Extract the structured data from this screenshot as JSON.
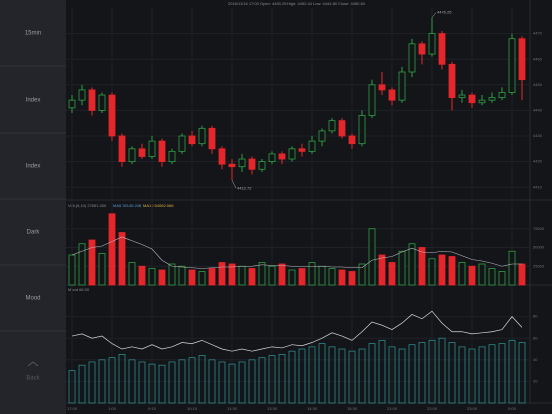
{
  "sidebar": {
    "items": [
      "15min",
      "Index",
      "Index",
      "Dark",
      "Mood"
    ],
    "back": "Back"
  },
  "header": {
    "time": "2016/11/16 17:00",
    "open": "Open: 4450.25",
    "high": "High: 4452.44",
    "low": "Low: 4444.80",
    "close": "Close: 4450.84"
  },
  "chart_data": {
    "type": "candlestick",
    "categories": [
      "17:00",
      null,
      null,
      null,
      "1:00",
      null,
      null,
      null,
      "9:15",
      null,
      null,
      null,
      "10:15",
      null,
      null,
      null,
      "11:30",
      null,
      null,
      null,
      "13:30",
      null,
      null,
      null,
      "14:30",
      null,
      null,
      null,
      "15:30",
      null,
      null,
      null,
      "21:00",
      null,
      null,
      null,
      "22:00",
      null,
      null,
      null,
      "23:00",
      null,
      null,
      null,
      "0:00",
      null
    ],
    "candles": [
      [
        4441,
        4446,
        4439,
        4444
      ],
      [
        4444,
        4450,
        4442,
        4448
      ],
      [
        4448,
        4449,
        4438,
        4440
      ],
      [
        4440,
        4447,
        4439,
        4446
      ],
      [
        4446,
        4447,
        4428,
        4430
      ],
      [
        4430,
        4431,
        4418,
        4420
      ],
      [
        4420,
        4426,
        4419,
        4425
      ],
      [
        4425,
        4427,
        4421,
        4422
      ],
      [
        4422,
        4430,
        4421,
        4428
      ],
      [
        4428,
        4429,
        4418,
        4420
      ],
      [
        4420,
        4425,
        4419,
        4424
      ],
      [
        4424,
        4431,
        4423,
        4430
      ],
      [
        4430,
        4432,
        4426,
        4427
      ],
      [
        4427,
        4434,
        4426,
        4433
      ],
      [
        4433,
        4434,
        4423,
        4425
      ],
      [
        4425,
        4426,
        4417,
        4419
      ],
      [
        4419,
        4421,
        4412.72,
        4418
      ],
      [
        4418,
        4423,
        4416,
        4421
      ],
      [
        4421,
        4422,
        4415,
        4417
      ],
      [
        4417,
        4421,
        4416,
        4420
      ],
      [
        4420,
        4424,
        4419,
        4423
      ],
      [
        4423,
        4424,
        4419,
        4421
      ],
      [
        4421,
        4426,
        4420,
        4425
      ],
      [
        4425,
        4427,
        4422,
        4424
      ],
      [
        4424,
        4430,
        4423,
        4428
      ],
      [
        4428,
        4433,
        4426,
        4432
      ],
      [
        4432,
        4437,
        4431,
        4436
      ],
      [
        4436,
        4437,
        4429,
        4430
      ],
      [
        4430,
        4431,
        4425,
        4427
      ],
      [
        4427,
        4440,
        4426,
        4438
      ],
      [
        4438,
        4452,
        4437,
        4450
      ],
      [
        4450,
        4455,
        4446,
        4448
      ],
      [
        4448,
        4449,
        4442,
        4444
      ],
      [
        4444,
        4457,
        4443,
        4455
      ],
      [
        4455,
        4468,
        4453,
        4466
      ],
      [
        4466,
        4467,
        4458,
        4462
      ],
      [
        4462,
        4476.25,
        4461,
        4470
      ],
      [
        4470,
        4471,
        4456,
        4458
      ],
      [
        4458,
        4459,
        4440,
        4445
      ],
      [
        4445,
        4448,
        4443,
        4446
      ],
      [
        4446,
        4447,
        4441,
        4443
      ],
      [
        4443,
        4446,
        4442,
        4444
      ],
      [
        4444,
        4447,
        4443,
        4445
      ],
      [
        4445,
        4449,
        4444,
        4447
      ],
      [
        4447,
        4470,
        4446,
        4468
      ],
      [
        4468,
        4469,
        4444,
        4452
      ]
    ],
    "low_mark": 16,
    "high_mark": 36,
    "ylim": [
      4405,
      4480
    ],
    "yticks": [
      4410,
      4420,
      4430,
      4440,
      4450,
      4460,
      4470
    ],
    "up_color": "#2ea043",
    "down_color": "#e5262b",
    "volume": {
      "title": "VolL(5,10) 27651.000",
      "ma5_label": "MA5 39145.248",
      "ma10_label": "MA10 54062.066",
      "values": [
        40000,
        55000,
        60000,
        42000,
        95000,
        70000,
        30000,
        25000,
        22000,
        20000,
        28000,
        25000,
        20000,
        18000,
        22000,
        30000,
        28000,
        25000,
        22000,
        30000,
        25000,
        28000,
        20000,
        22000,
        30000,
        25000,
        22000,
        20000,
        18000,
        28000,
        75000,
        40000,
        30000,
        45000,
        55000,
        50000,
        35000,
        40000,
        38000,
        30000,
        25000,
        28000,
        22000,
        18000,
        45000,
        28000
      ],
      "ma5": [
        40000,
        45000,
        50000,
        52000,
        58000,
        64000,
        59000,
        54000,
        48000,
        33000,
        25000,
        24000,
        23000,
        22000,
        23000,
        24000,
        24000,
        25000,
        25000,
        27000,
        26000,
        26000,
        25000,
        25000,
        25000,
        25000,
        24000,
        24000,
        23000,
        23000,
        33000,
        36000,
        38000,
        44000,
        49000,
        44000,
        43000,
        45000,
        44000,
        39000,
        34000,
        32000,
        29000,
        25000,
        28000,
        28000
      ],
      "ylim": [
        0,
        100000
      ],
      "yticks": [
        25000,
        50000,
        75000
      ]
    },
    "mood": {
      "title": "Mood 66.00",
      "bars": [
        30,
        35,
        38,
        40,
        42,
        45,
        40,
        38,
        36,
        35,
        38,
        40,
        42,
        44,
        40,
        38,
        36,
        38,
        40,
        42,
        44,
        45,
        48,
        50,
        52,
        55,
        52,
        50,
        48,
        50,
        55,
        58,
        52,
        50,
        54,
        56,
        58,
        60,
        56,
        52,
        50,
        52,
        54,
        55,
        58,
        56
      ],
      "line": [
        62,
        64,
        60,
        62,
        55,
        50,
        52,
        50,
        54,
        50,
        52,
        56,
        55,
        58,
        54,
        50,
        48,
        50,
        48,
        50,
        52,
        51,
        54,
        53,
        56,
        60,
        65,
        62,
        58,
        66,
        75,
        72,
        68,
        74,
        82,
        78,
        85,
        74,
        66,
        66,
        64,
        65,
        66,
        68,
        80,
        70
      ],
      "ylim": [
        0,
        100
      ],
      "yticks": [
        20,
        40,
        60,
        80
      ],
      "bar_color": "#2b8a8a",
      "line_color": "#d8d8d8"
    }
  }
}
